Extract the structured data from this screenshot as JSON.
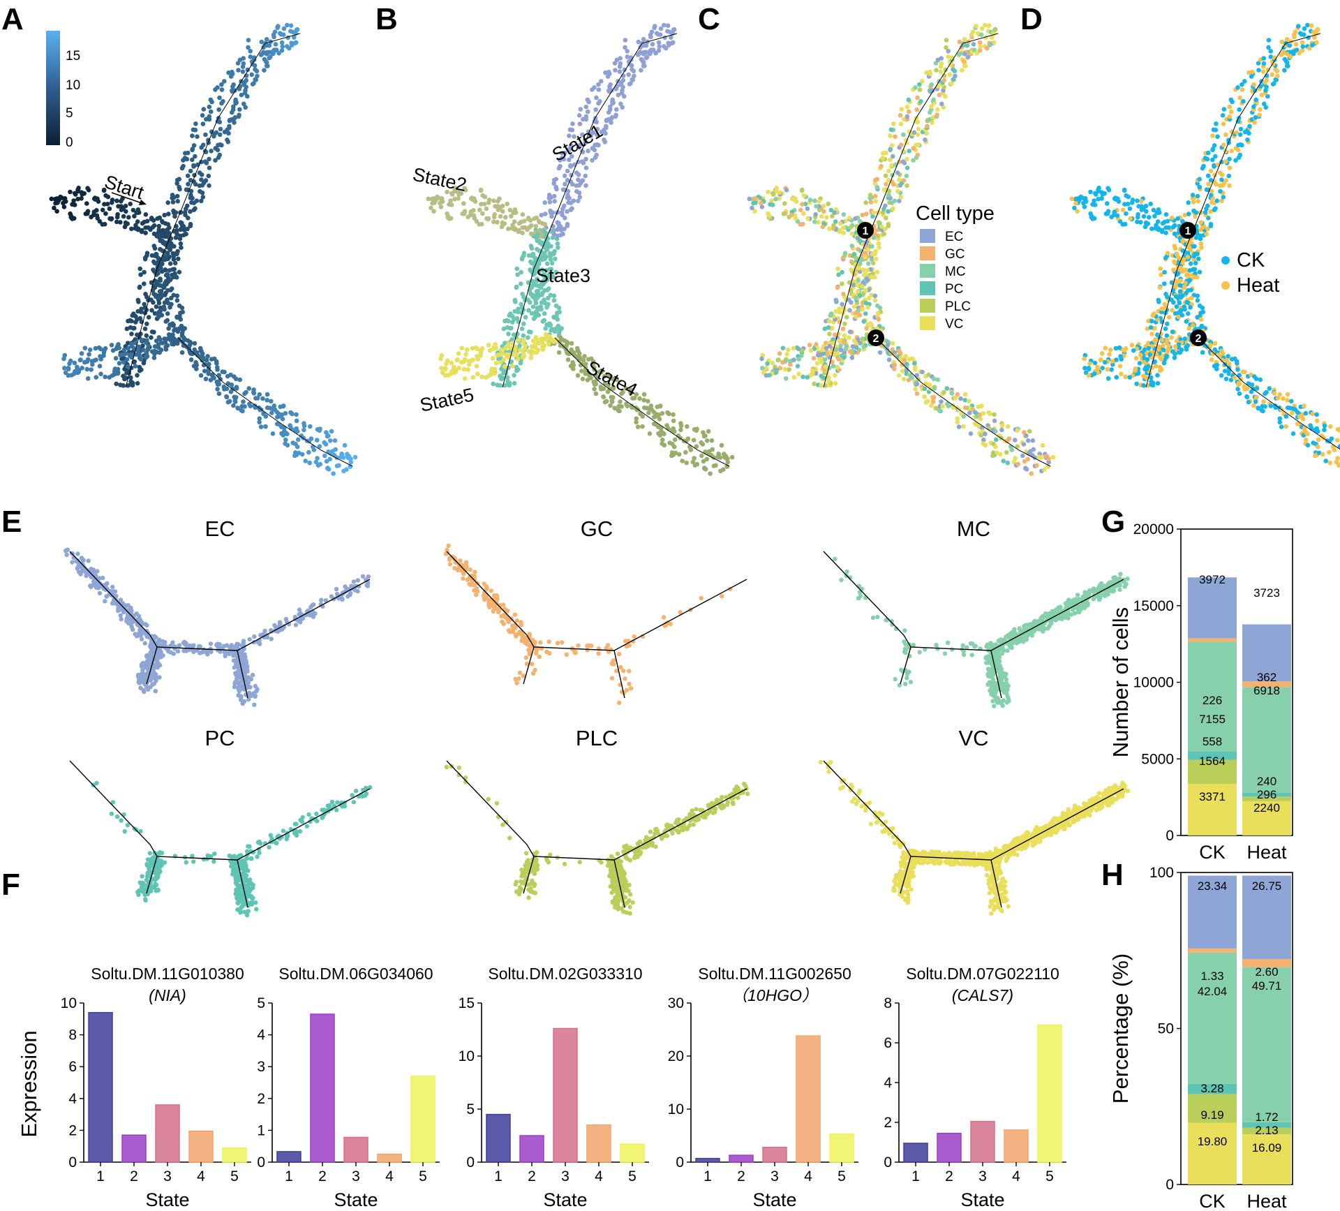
{
  "panel_letters": {
    "A": "A",
    "B": "B",
    "C": "C",
    "D": "D",
    "E": "E",
    "F": "F",
    "G": "G",
    "H": "H"
  },
  "colors": {
    "EC": "#8ea6d6",
    "GC": "#f4b26e",
    "MC": "#86d0ac",
    "PC": "#5ec4b4",
    "PLC": "#b9cf5a",
    "VC": "#e9df5a",
    "CK": "#13b5ea",
    "Heat": "#f7c24a",
    "state1": "#8ea0d4",
    "state2": "#b8bd84",
    "state3": "#6dc5b4",
    "state4": "#9aac6c",
    "state5": "#e6e05a",
    "pseudo_low": "#0c1f33",
    "pseudo_high": "#5ab0ef",
    "bar_state": [
      "#3e3e9a",
      "#9b3ec6",
      "#d6708e",
      "#f3a46c",
      "#eef35a"
    ]
  },
  "panelA": {
    "colorbar_ticks": [
      "15",
      "10",
      "5",
      "0"
    ],
    "start_label": "Start"
  },
  "panelB": {
    "state_labels": [
      "State1",
      "State2",
      "State3",
      "State4",
      "State5"
    ]
  },
  "panelC": {
    "legend_title": "Cell type",
    "legend_items": [
      "EC",
      "GC",
      "MC",
      "PC",
      "PLC",
      "VC"
    ],
    "branch_points": [
      "1",
      "2"
    ]
  },
  "panelD": {
    "legend_items": [
      "CK",
      "Heat"
    ],
    "branch_points": [
      "1",
      "2"
    ]
  },
  "panelE": {
    "titles": [
      "EC",
      "GC",
      "MC",
      "PC",
      "PLC",
      "VC"
    ]
  },
  "chart_data": [
    {
      "type": "bar",
      "panel": "F",
      "title": "Soltu.DM.11G010380",
      "subtitle": "(NIA)",
      "categories": [
        "1",
        "2",
        "3",
        "4",
        "5"
      ],
      "values": [
        9.4,
        1.7,
        3.6,
        1.95,
        0.9
      ],
      "xlabel": "State",
      "ylabel": "Expression",
      "ylim": [
        0,
        10
      ],
      "yticks": [
        "0",
        "2",
        "4",
        "6",
        "8",
        "10"
      ]
    },
    {
      "type": "bar",
      "panel": "F",
      "title": "Soltu.DM.06G034060",
      "subtitle": "",
      "categories": [
        "1",
        "2",
        "3",
        "4",
        "5"
      ],
      "values": [
        0.33,
        4.65,
        0.78,
        0.25,
        2.7
      ],
      "xlabel": "State",
      "ylabel": "",
      "ylim": [
        0,
        5
      ],
      "yticks": [
        "0",
        "1",
        "2",
        "3",
        "4",
        "5"
      ]
    },
    {
      "type": "bar",
      "panel": "F",
      "title": "Soltu.DM.02G033310",
      "subtitle": "",
      "categories": [
        "1",
        "2",
        "3",
        "4",
        "5"
      ],
      "values": [
        4.5,
        2.5,
        12.6,
        3.5,
        1.7
      ],
      "xlabel": "State",
      "ylabel": "",
      "ylim": [
        0,
        15
      ],
      "yticks": [
        "0",
        "5",
        "10",
        "15"
      ]
    },
    {
      "type": "bar",
      "panel": "F",
      "title": "Soltu.DM.11G002650",
      "subtitle": "（10HGO）",
      "categories": [
        "1",
        "2",
        "3",
        "4",
        "5"
      ],
      "values": [
        0.7,
        1.3,
        2.8,
        23.8,
        5.3
      ],
      "xlabel": "State",
      "ylabel": "",
      "ylim": [
        0,
        30
      ],
      "yticks": [
        "0",
        "10",
        "20",
        "30"
      ]
    },
    {
      "type": "bar",
      "panel": "F",
      "title": "Soltu.DM.07G022110",
      "subtitle": "(CALS7)",
      "categories": [
        "1",
        "2",
        "3",
        "4",
        "5"
      ],
      "values": [
        0.95,
        1.45,
        2.05,
        1.62,
        6.9
      ],
      "xlabel": "State",
      "ylabel": "",
      "ylim": [
        0,
        8
      ],
      "yticks": [
        "0",
        "2",
        "4",
        "6",
        "8"
      ]
    },
    {
      "type": "bar",
      "panel": "G",
      "stacked": true,
      "categories": [
        "CK",
        "Heat"
      ],
      "series": [
        {
          "name": "VC",
          "values": [
            3371,
            2240
          ]
        },
        {
          "name": "PLC",
          "values": [
            1564,
            296
          ]
        },
        {
          "name": "PC",
          "values": [
            558,
            240
          ]
        },
        {
          "name": "MC",
          "values": [
            7155,
            6918
          ]
        },
        {
          "name": "GC",
          "values": [
            226,
            362
          ]
        },
        {
          "name": "EC",
          "values": [
            3972,
            3723
          ]
        }
      ],
      "ylabel": "Number of cells",
      "ylim": [
        0,
        20000
      ],
      "yticks": [
        "0",
        "5000",
        "10000",
        "15000",
        "20000"
      ]
    },
    {
      "type": "bar",
      "panel": "H",
      "stacked": true,
      "categories": [
        "CK",
        "Heat"
      ],
      "series": [
        {
          "name": "VC",
          "values": [
            19.8,
            16.09
          ],
          "labels": [
            "19.80",
            "16.09"
          ]
        },
        {
          "name": "PLC",
          "values": [
            9.19,
            2.13
          ],
          "labels": [
            "9.19",
            "2.13"
          ]
        },
        {
          "name": "PC",
          "values": [
            3.28,
            1.72
          ],
          "labels": [
            "3.28",
            "1.72"
          ]
        },
        {
          "name": "MC",
          "values": [
            42.04,
            49.71
          ],
          "labels": [
            "42.04",
            "49.71"
          ]
        },
        {
          "name": "GC",
          "values": [
            1.33,
            2.6
          ],
          "labels": [
            "1.33",
            "2.60"
          ]
        },
        {
          "name": "EC",
          "values": [
            23.34,
            26.75
          ],
          "labels": [
            "23.34",
            "26.75"
          ]
        }
      ],
      "ylabel": "Percentage (%)",
      "ylim": [
        0,
        100
      ],
      "yticks": [
        "0",
        "50",
        "100"
      ]
    }
  ]
}
